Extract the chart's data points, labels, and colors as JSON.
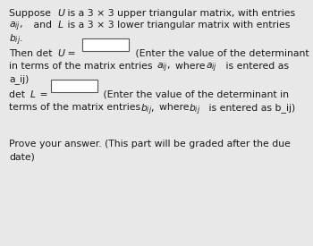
{
  "bg_color": "#e8e8e8",
  "text_color": "#1a1a1a",
  "box_color": "#ffffff",
  "box_border_color": "#555555",
  "font_size": 7.8,
  "line1": "Suppose ",
  "line1_U": "U",
  "line1_rest": " is a 3 × 3 upper triangular matrix, with entries",
  "line2_aij": "$a_{ij}$,",
  "line2_mid": " and ",
  "line2_L": "L",
  "line2_rest": " is a 3 × 3 lower triangular matrix with entries",
  "line3_bij": "$b_{ij}$.",
  "line4_pre": "Then det ",
  "line4_U": "U",
  "line4_eq": " =",
  "line4_post": "(Enter the value of the determinant",
  "line5": "in terms of the matrix entries ",
  "line5_aij1": "$a_{ij}$,",
  "line5_where": "where ",
  "line5_aij2": "$a_{ij}$",
  "line5_rest": " is entered as",
  "line6": "a_ij)",
  "line7_pre": "det ",
  "line7_L": "L",
  "line7_eq": " =",
  "line7_post": "(Enter the value of the determinant in",
  "line8": "terms of the matrix entries ",
  "line8_bij1": "$b_{ij}$,",
  "line8_where": "where ",
  "line8_bij2": "$b_{ij}$",
  "line8_rest": " is entered as b_ij)",
  "line9": "Prove your answer. (This part will be graded after the due",
  "line10": "date)"
}
